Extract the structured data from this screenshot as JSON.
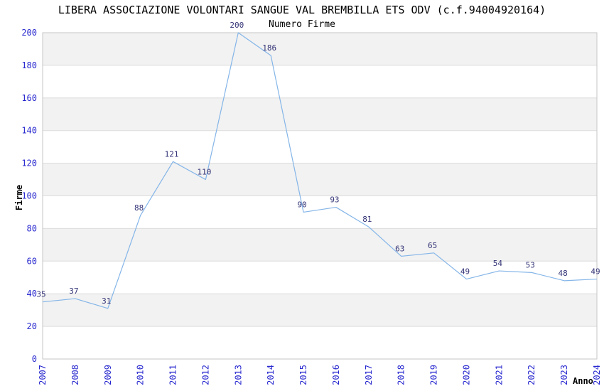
{
  "header": {
    "title": "LIBERA ASSOCIAZIONE VOLONTARI SANGUE VAL BREMBILLA ETS ODV (c.f.94004920164)"
  },
  "chart_data": {
    "type": "line",
    "title": "Numero Firme",
    "xlabel": "Anno",
    "ylabel": "Firme",
    "categories": [
      "2007",
      "2008",
      "2009",
      "2010",
      "2011",
      "2012",
      "2013",
      "2014",
      "2015",
      "2016",
      "2017",
      "2018",
      "2019",
      "2020",
      "2021",
      "2022",
      "2023",
      "2024"
    ],
    "values": [
      35,
      37,
      31,
      88,
      121,
      110,
      200,
      186,
      90,
      93,
      81,
      63,
      65,
      49,
      54,
      53,
      48,
      49
    ],
    "ylim": [
      0,
      200
    ],
    "ytick_step": 20,
    "grid": true,
    "legend": "none",
    "band_fill": "alternating",
    "colors": {
      "line": "#84b5e8",
      "tick_label": "#2727cf",
      "data_label": "#333377",
      "band": "#f2f2f2",
      "grid_line": "#dcdcdc",
      "border": "#c6c6c6",
      "text": "#000000"
    }
  }
}
